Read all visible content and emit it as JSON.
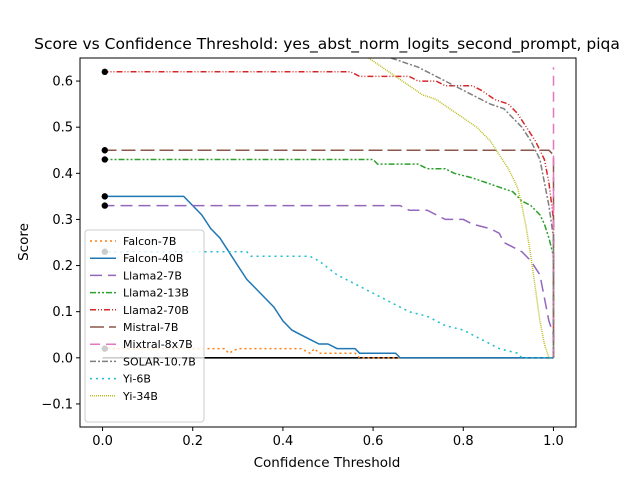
{
  "chart_data": {
    "type": "line",
    "title": "Score vs Confidence Threshold: yes_abst_norm_logits_second_prompt, piqa",
    "xlabel": "Confidence Threshold",
    "ylabel": "Score",
    "xlim": [
      -0.05,
      1.05
    ],
    "ylim": [
      -0.15,
      0.65
    ],
    "xticks": [
      0.0,
      0.2,
      0.4,
      0.6,
      0.8,
      1.0
    ],
    "xtick_labels": [
      "0.0",
      "0.2",
      "0.4",
      "0.6",
      "0.8",
      "1.0"
    ],
    "yticks": [
      -0.1,
      0.0,
      0.1,
      0.2,
      0.3,
      0.4,
      0.5,
      0.6
    ],
    "ytick_labels": [
      "−0.1",
      "0.0",
      "0.1",
      "0.2",
      "0.3",
      "0.4",
      "0.5",
      "0.6"
    ],
    "grid": false,
    "legend_position": "lower-left",
    "baseline": 0,
    "start_points": [
      0.62,
      0.45,
      0.43,
      0.35,
      0.33,
      0.23,
      0.02
    ],
    "series": [
      {
        "name": "Falcon-7B",
        "color": "#ff7f0e",
        "dash": "2,3",
        "points": [
          [
            0,
            0.02
          ],
          [
            0.27,
            0.02
          ],
          [
            0.28,
            0.01
          ],
          [
            0.3,
            0.02
          ],
          [
            0.44,
            0.02
          ],
          [
            0.46,
            0.01
          ],
          [
            0.47,
            0.02
          ],
          [
            0.48,
            0.01
          ],
          [
            0.56,
            0.01
          ],
          [
            0.57,
            0.0
          ],
          [
            1.0,
            0.0
          ]
        ]
      },
      {
        "name": "Falcon-40B",
        "color": "#1f77b4",
        "dash": "",
        "points": [
          [
            0,
            0.35
          ],
          [
            0.18,
            0.35
          ],
          [
            0.2,
            0.33
          ],
          [
            0.22,
            0.31
          ],
          [
            0.24,
            0.28
          ],
          [
            0.26,
            0.26
          ],
          [
            0.28,
            0.23
          ],
          [
            0.3,
            0.2
          ],
          [
            0.32,
            0.17
          ],
          [
            0.34,
            0.15
          ],
          [
            0.36,
            0.13
          ],
          [
            0.38,
            0.11
          ],
          [
            0.4,
            0.08
          ],
          [
            0.42,
            0.06
          ],
          [
            0.44,
            0.05
          ],
          [
            0.46,
            0.04
          ],
          [
            0.48,
            0.03
          ],
          [
            0.5,
            0.03
          ],
          [
            0.52,
            0.02
          ],
          [
            0.56,
            0.02
          ],
          [
            0.57,
            0.01
          ],
          [
            0.65,
            0.01
          ],
          [
            0.66,
            0.0
          ],
          [
            1.0,
            0.0
          ]
        ]
      },
      {
        "name": "Llama2-7B",
        "color": "#9467bd",
        "dash": "12,6",
        "points": [
          [
            0,
            0.33
          ],
          [
            0.66,
            0.33
          ],
          [
            0.68,
            0.32
          ],
          [
            0.72,
            0.32
          ],
          [
            0.74,
            0.31
          ],
          [
            0.76,
            0.3
          ],
          [
            0.8,
            0.3
          ],
          [
            0.82,
            0.29
          ],
          [
            0.86,
            0.28
          ],
          [
            0.88,
            0.27
          ],
          [
            0.89,
            0.25
          ],
          [
            0.91,
            0.24
          ],
          [
            0.93,
            0.23
          ],
          [
            0.95,
            0.21
          ],
          [
            0.97,
            0.18
          ],
          [
            0.98,
            0.13
          ],
          [
            0.99,
            0.08
          ],
          [
            1.0,
            0.05
          ],
          [
            1.0,
            0.0
          ]
        ]
      },
      {
        "name": "Llama2-13B",
        "color": "#2ca02c",
        "dash": "6,2,2,2,2,2",
        "points": [
          [
            0,
            0.43
          ],
          [
            0.6,
            0.43
          ],
          [
            0.61,
            0.42
          ],
          [
            0.7,
            0.42
          ],
          [
            0.72,
            0.41
          ],
          [
            0.76,
            0.41
          ],
          [
            0.78,
            0.4
          ],
          [
            0.82,
            0.39
          ],
          [
            0.85,
            0.38
          ],
          [
            0.88,
            0.37
          ],
          [
            0.91,
            0.36
          ],
          [
            0.93,
            0.34
          ],
          [
            0.95,
            0.33
          ],
          [
            0.97,
            0.31
          ],
          [
            0.98,
            0.29
          ],
          [
            0.99,
            0.26
          ],
          [
            1.0,
            0.22
          ],
          [
            1.0,
            0.0
          ]
        ]
      },
      {
        "name": "Llama2-70B",
        "color": "#d62728",
        "dash": "6,2,1,2,1,2",
        "points": [
          [
            0,
            0.62
          ],
          [
            0.5,
            0.62
          ],
          [
            0.55,
            0.62
          ],
          [
            0.57,
            0.61
          ],
          [
            0.68,
            0.61
          ],
          [
            0.7,
            0.6
          ],
          [
            0.74,
            0.6
          ],
          [
            0.76,
            0.59
          ],
          [
            0.82,
            0.59
          ],
          [
            0.84,
            0.58
          ],
          [
            0.87,
            0.56
          ],
          [
            0.9,
            0.55
          ],
          [
            0.92,
            0.53
          ],
          [
            0.94,
            0.5
          ],
          [
            0.96,
            0.47
          ],
          [
            0.98,
            0.43
          ],
          [
            0.99,
            0.38
          ],
          [
            1.0,
            0.3
          ],
          [
            1.0,
            0.0
          ]
        ]
      },
      {
        "name": "Mistral-7B",
        "color": "#8c564b",
        "dash": "14,5",
        "points": [
          [
            0,
            0.45
          ],
          [
            0.99,
            0.45
          ],
          [
            1.0,
            0.44
          ],
          [
            1.0,
            0.0
          ]
        ]
      },
      {
        "name": "Mixtral-8x7B",
        "color": "#e377c2",
        "dash": "10,6",
        "points": [
          [
            1.0,
            0.0
          ],
          [
            1.0,
            0.63
          ]
        ]
      },
      {
        "name": "SOLAR-10.7B",
        "color": "#7f7f7f",
        "dash": "6,2,2,2",
        "points": [
          [
            0.64,
            0.65
          ],
          [
            0.7,
            0.63
          ],
          [
            0.74,
            0.61
          ],
          [
            0.78,
            0.59
          ],
          [
            0.82,
            0.57
          ],
          [
            0.86,
            0.55
          ],
          [
            0.89,
            0.54
          ],
          [
            0.91,
            0.52
          ],
          [
            0.93,
            0.5
          ],
          [
            0.95,
            0.47
          ],
          [
            0.97,
            0.43
          ],
          [
            0.98,
            0.38
          ],
          [
            0.99,
            0.33
          ],
          [
            1.0,
            0.26
          ],
          [
            1.0,
            0.0
          ]
        ]
      },
      {
        "name": "Yi-6B",
        "color": "#17becf",
        "dash": "2,4",
        "points": [
          [
            0,
            0.23
          ],
          [
            0.32,
            0.23
          ],
          [
            0.33,
            0.22
          ],
          [
            0.46,
            0.22
          ],
          [
            0.48,
            0.21
          ],
          [
            0.52,
            0.18
          ],
          [
            0.56,
            0.16
          ],
          [
            0.6,
            0.14
          ],
          [
            0.64,
            0.12
          ],
          [
            0.68,
            0.1
          ],
          [
            0.72,
            0.09
          ],
          [
            0.76,
            0.07
          ],
          [
            0.8,
            0.06
          ],
          [
            0.84,
            0.04
          ],
          [
            0.88,
            0.02
          ],
          [
            0.92,
            0.01
          ],
          [
            0.93,
            0.0
          ],
          [
            1.0,
            0.0
          ]
        ]
      },
      {
        "name": "Yi-34B",
        "color": "#bcbd22",
        "dash": "1,1",
        "points": [
          [
            0.59,
            0.65
          ],
          [
            0.62,
            0.63
          ],
          [
            0.65,
            0.61
          ],
          [
            0.68,
            0.59
          ],
          [
            0.71,
            0.57
          ],
          [
            0.74,
            0.56
          ],
          [
            0.77,
            0.54
          ],
          [
            0.8,
            0.52
          ],
          [
            0.83,
            0.5
          ],
          [
            0.86,
            0.47
          ],
          [
            0.88,
            0.44
          ],
          [
            0.9,
            0.41
          ],
          [
            0.92,
            0.37
          ],
          [
            0.93,
            0.33
          ],
          [
            0.94,
            0.28
          ],
          [
            0.95,
            0.22
          ],
          [
            0.96,
            0.15
          ],
          [
            0.97,
            0.08
          ],
          [
            0.98,
            0.03
          ],
          [
            0.99,
            0.0
          ]
        ]
      }
    ]
  }
}
